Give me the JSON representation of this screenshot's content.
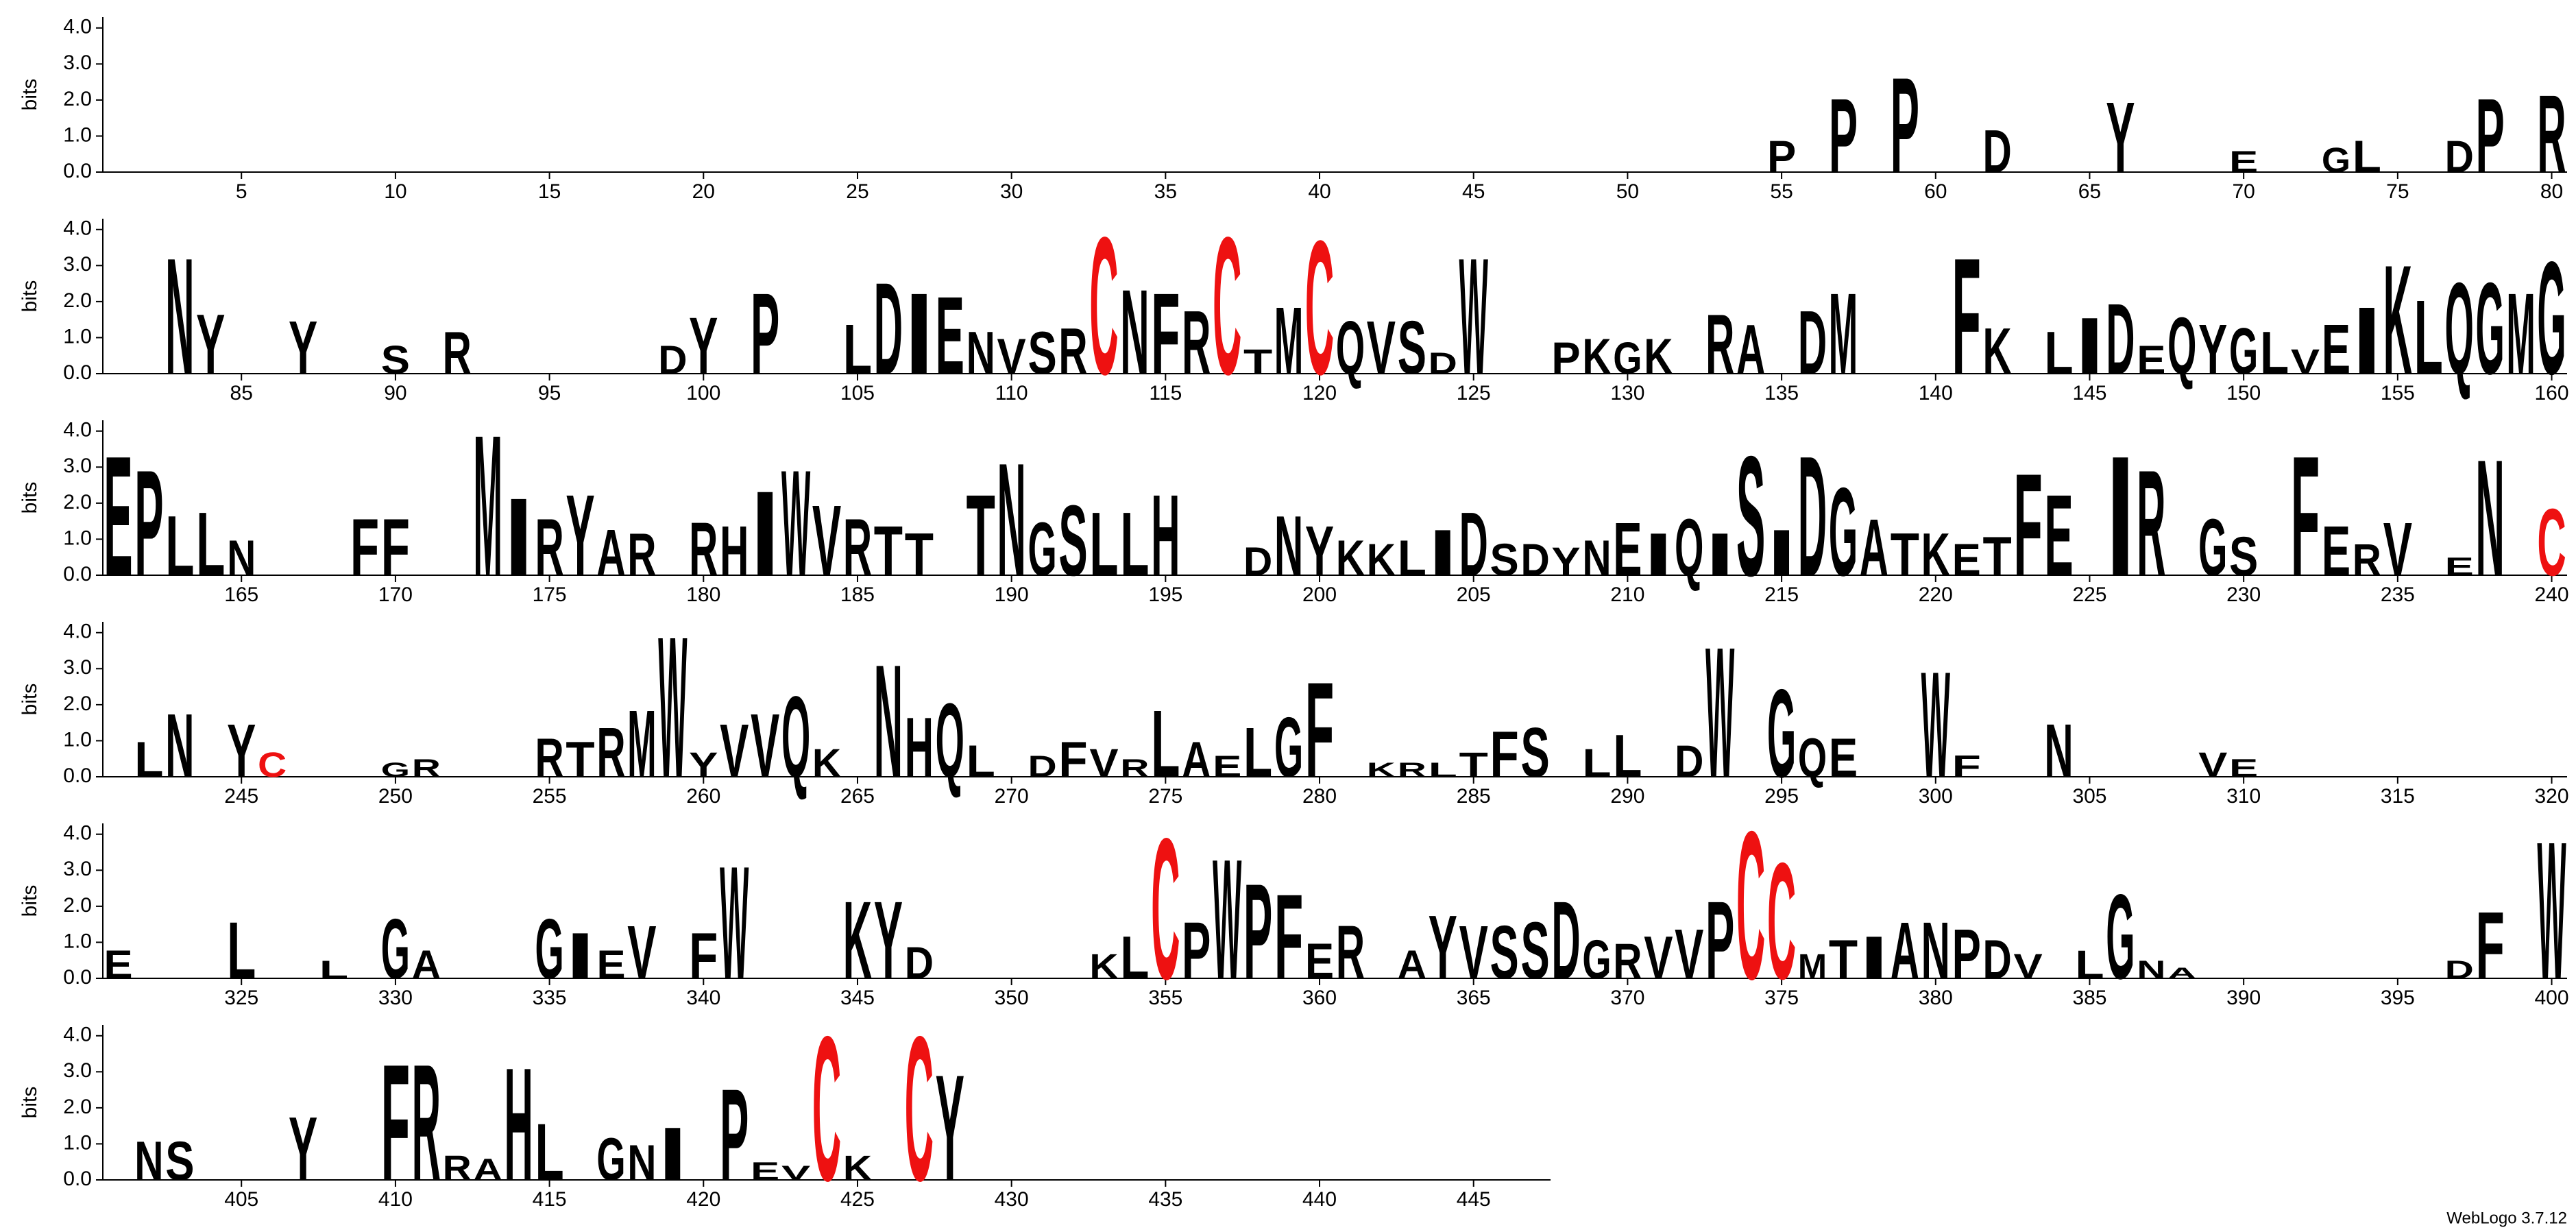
{
  "footer": "WebLogo 3.7.12",
  "chart_data": [
    {
      "type": "logo",
      "ylabel": "bits",
      "xlim": [
        0.5,
        80.5
      ],
      "ylim": [
        0,
        4.3
      ],
      "xticks": [
        5,
        10,
        15,
        20,
        25,
        30,
        35,
        40,
        45,
        50,
        55,
        60,
        65,
        70,
        75,
        80
      ],
      "yticks": [
        {
          "value": 0,
          "label": "0.0"
        },
        {
          "value": 1,
          "label": "1.0"
        },
        {
          "value": 2,
          "label": "2.0"
        },
        {
          "value": 3,
          "label": "3.0"
        },
        {
          "value": 4,
          "label": "4.0"
        }
      ],
      "color": "#000000",
      "highlight_letter": "C",
      "highlight_color": "#ee1111",
      "positions": [
        55,
        57,
        59,
        62,
        66,
        70,
        73,
        74,
        77,
        78,
        80
      ],
      "letters": [
        "P",
        "P",
        "P",
        "D",
        "Y",
        "E",
        "G",
        "L",
        "D",
        "P",
        "R"
      ],
      "values": [
        0.9,
        2.1,
        2.7,
        1.2,
        2.0,
        0.6,
        0.7,
        0.9,
        0.9,
        2.1,
        2.2
      ]
    },
    {
      "type": "logo",
      "ylabel": "bits",
      "xlim": [
        80.5,
        160.5
      ],
      "ylim": [
        0,
        4.3
      ],
      "xticks": [
        85,
        90,
        95,
        100,
        105,
        110,
        115,
        120,
        125,
        130,
        135,
        140,
        145,
        150,
        155,
        160
      ],
      "yticks": [
        {
          "value": 0,
          "label": "0.0"
        },
        {
          "value": 1,
          "label": "1.0"
        },
        {
          "value": 2,
          "label": "2.0"
        },
        {
          "value": 3,
          "label": "3.0"
        },
        {
          "value": 4,
          "label": "4.0"
        }
      ],
      "color": "#000000",
      "highlight_letter": "C",
      "highlight_color": "#ee1111",
      "positions": [
        83,
        84,
        87,
        90,
        92,
        99,
        100,
        102,
        105,
        106,
        107,
        108,
        109,
        110,
        111,
        112,
        113,
        114,
        115,
        116,
        117,
        118,
        119,
        120,
        121,
        122,
        123,
        124,
        125,
        128,
        129,
        130,
        131,
        133,
        134,
        136,
        137,
        141,
        142,
        144,
        145,
        146,
        147,
        148,
        149,
        150,
        151,
        152,
        153,
        154,
        155,
        156,
        157,
        158,
        159,
        160
      ],
      "letters": [
        "N",
        "Y",
        "Y",
        "S",
        "R",
        "D",
        "Y",
        "P",
        "L",
        "D",
        "I",
        "E",
        "N",
        "V",
        "S",
        "R",
        "C",
        "N",
        "F",
        "R",
        "C",
        "T",
        "M",
        "C",
        "Q",
        "V",
        "S",
        "D",
        "W",
        "P",
        "K",
        "G",
        "K",
        "R",
        "A",
        "D",
        "M",
        "F",
        "K",
        "L",
        "I",
        "D",
        "E",
        "Q",
        "Y",
        "G",
        "L",
        "V",
        "E",
        "I",
        "K",
        "L",
        "Q",
        "G",
        "M",
        "G"
      ],
      "values": [
        3.3,
        1.7,
        1.5,
        0.8,
        1.2,
        0.8,
        1.6,
        2.3,
        1.4,
        2.6,
        2.3,
        2.2,
        1.2,
        1.0,
        1.2,
        1.3,
        3.9,
        2.4,
        2.3,
        1.8,
        3.9,
        0.7,
        1.9,
        3.8,
        1.5,
        1.5,
        1.5,
        0.6,
        3.3,
        0.9,
        1.0,
        0.9,
        1.0,
        1.7,
        1.4,
        1.8,
        2.3,
        3.3,
        1.3,
        1.2,
        1.6,
        2.0,
        0.8,
        1.6,
        1.4,
        1.3,
        1.2,
        0.7,
        1.4,
        1.9,
        3.1,
        2.1,
        2.6,
        2.6,
        2.3,
        3.2
      ]
    },
    {
      "type": "logo",
      "ylabel": "bits",
      "xlim": [
        160.5,
        240.5
      ],
      "ylim": [
        0,
        4.3
      ],
      "xticks": [
        165,
        170,
        175,
        180,
        185,
        190,
        195,
        200,
        205,
        210,
        215,
        220,
        225,
        230,
        235,
        240
      ],
      "yticks": [
        {
          "value": 0,
          "label": "0.0"
        },
        {
          "value": 1,
          "label": "1.0"
        },
        {
          "value": 2,
          "label": "2.0"
        },
        {
          "value": 3,
          "label": "3.0"
        },
        {
          "value": 4,
          "label": "4.0"
        }
      ],
      "color": "#000000",
      "highlight_letter": "C",
      "highlight_color": "#ee1111",
      "positions": [
        161,
        162,
        163,
        164,
        165,
        169,
        170,
        173,
        174,
        175,
        176,
        177,
        178,
        180,
        181,
        182,
        183,
        184,
        185,
        186,
        187,
        189,
        190,
        191,
        192,
        193,
        194,
        195,
        198,
        199,
        200,
        201,
        202,
        203,
        204,
        205,
        206,
        207,
        208,
        209,
        210,
        211,
        212,
        213,
        214,
        215,
        216,
        217,
        218,
        219,
        220,
        221,
        222,
        223,
        224,
        226,
        227,
        229,
        230,
        232,
        233,
        234,
        235,
        237,
        238,
        240
      ],
      "letters": [
        "E",
        "P",
        "L",
        "L",
        "N",
        "F",
        "F",
        "M",
        "I",
        "R",
        "Y",
        "A",
        "R",
        "R",
        "H",
        "I",
        "W",
        "V",
        "R",
        "T",
        "T",
        "T",
        "N",
        "G",
        "S",
        "L",
        "L",
        "H",
        "D",
        "N",
        "Y",
        "K",
        "K",
        "L",
        "I",
        "D",
        "S",
        "D",
        "Y",
        "N",
        "E",
        "I",
        "Q",
        "I",
        "S",
        "I",
        "D",
        "G",
        "A",
        "T",
        "K",
        "E",
        "T",
        "F",
        "E",
        "I",
        "R",
        "G",
        "S",
        "F",
        "E",
        "R",
        "V",
        "E",
        "N",
        "C"
      ],
      "values": [
        3.4,
        3.0,
        1.7,
        1.8,
        1.0,
        1.6,
        1.6,
        4.0,
        2.2,
        1.6,
        2.3,
        1.3,
        1.2,
        1.5,
        1.4,
        2.4,
        3.0,
        2.0,
        1.6,
        1.4,
        1.2,
        2.3,
        3.2,
        1.5,
        2.0,
        1.8,
        1.8,
        2.3,
        0.8,
        1.7,
        1.4,
        1.0,
        0.9,
        1.0,
        1.3,
        1.8,
        0.9,
        0.9,
        0.8,
        1.0,
        1.5,
        1.2,
        1.6,
        1.2,
        3.4,
        1.3,
        3.4,
        2.5,
        1.6,
        1.2,
        1.2,
        0.9,
        1.1,
        2.9,
        2.3,
        3.4,
        3.0,
        1.6,
        1.1,
        3.4,
        1.4,
        0.9,
        1.5,
        0.5,
        3.3,
        1.9
      ]
    },
    {
      "type": "logo",
      "ylabel": "bits",
      "xlim": [
        240.5,
        320.5
      ],
      "ylim": [
        0,
        4.3
      ],
      "xticks": [
        245,
        250,
        255,
        260,
        265,
        270,
        275,
        280,
        285,
        290,
        295,
        300,
        305,
        310,
        315,
        320
      ],
      "yticks": [
        {
          "value": 0,
          "label": "0.0"
        },
        {
          "value": 1,
          "label": "1.0"
        },
        {
          "value": 2,
          "label": "2.0"
        },
        {
          "value": 3,
          "label": "3.0"
        },
        {
          "value": 4,
          "label": "4.0"
        }
      ],
      "color": "#000000",
      "highlight_letter": "C",
      "highlight_color": "#ee1111",
      "positions": [
        242,
        243,
        245,
        246,
        250,
        251,
        255,
        256,
        257,
        258,
        259,
        260,
        261,
        262,
        263,
        264,
        266,
        267,
        268,
        269,
        271,
        272,
        273,
        274,
        275,
        276,
        277,
        278,
        279,
        280,
        282,
        283,
        284,
        285,
        286,
        287,
        289,
        290,
        292,
        293,
        295,
        296,
        297,
        300,
        301,
        304,
        309,
        310
      ],
      "letters": [
        "L",
        "N",
        "Y",
        "C",
        "G",
        "R",
        "R",
        "T",
        "R",
        "M",
        "W",
        "Y",
        "V",
        "V",
        "Q",
        "K",
        "N",
        "H",
        "Q",
        "L",
        "D",
        "F",
        "V",
        "R",
        "L",
        "A",
        "E",
        "L",
        "G",
        "F",
        "K",
        "R",
        "L",
        "T",
        "F",
        "S",
        "L",
        "L",
        "D",
        "W",
        "G",
        "Q",
        "E",
        "W",
        "F",
        "N",
        "V",
        "E"
      ],
      "values": [
        1.0,
        1.8,
        1.5,
        0.7,
        0.4,
        0.5,
        1.1,
        1.0,
        1.4,
        1.9,
        4.0,
        0.7,
        1.5,
        1.8,
        2.3,
        0.8,
        3.2,
        1.7,
        2.1,
        0.9,
        0.6,
        1.0,
        0.8,
        0.5,
        1.9,
        1.0,
        0.6,
        1.4,
        1.7,
        2.7,
        0.4,
        0.4,
        0.4,
        0.7,
        1.3,
        1.4,
        0.8,
        1.2,
        0.9,
        3.7,
        2.5,
        1.1,
        1.1,
        3.0,
        0.6,
        1.5,
        0.7,
        0.5
      ]
    },
    {
      "type": "logo",
      "ylabel": "bits",
      "xlim": [
        320.5,
        400.5
      ],
      "ylim": [
        0,
        4.3
      ],
      "xticks": [
        325,
        330,
        335,
        340,
        345,
        350,
        355,
        360,
        365,
        370,
        375,
        380,
        385,
        390,
        395,
        400
      ],
      "yticks": [
        {
          "value": 0,
          "label": "0.0"
        },
        {
          "value": 1,
          "label": "1.0"
        },
        {
          "value": 2,
          "label": "2.0"
        },
        {
          "value": 3,
          "label": "3.0"
        },
        {
          "value": 4,
          "label": "4.0"
        }
      ],
      "color": "#000000",
      "highlight_letter": "C",
      "highlight_color": "#ee1111",
      "positions": [
        321,
        325,
        328,
        330,
        331,
        335,
        336,
        337,
        338,
        340,
        341,
        345,
        346,
        347,
        353,
        354,
        355,
        356,
        357,
        358,
        359,
        360,
        361,
        363,
        364,
        365,
        366,
        367,
        368,
        369,
        370,
        371,
        372,
        373,
        374,
        375,
        376,
        377,
        378,
        379,
        380,
        381,
        382,
        383,
        385,
        386,
        387,
        388,
        397,
        398,
        400
      ],
      "letters": [
        "E",
        "L",
        "L",
        "G",
        "A",
        "G",
        "I",
        "E",
        "V",
        "F",
        "W",
        "K",
        "Y",
        "D",
        "K",
        "L",
        "C",
        "P",
        "W",
        "P",
        "F",
        "E",
        "R",
        "A",
        "Y",
        "V",
        "S",
        "S",
        "D",
        "G",
        "R",
        "V",
        "V",
        "P",
        "C",
        "C",
        "M",
        "T",
        "I",
        "A",
        "N",
        "P",
        "D",
        "V",
        "L",
        "G",
        "N",
        "A",
        "D",
        "F",
        "W"
      ],
      "values": [
        0.8,
        1.6,
        0.5,
        1.7,
        0.8,
        1.7,
        1.3,
        0.8,
        1.5,
        1.3,
        3.2,
        2.2,
        2.2,
        0.9,
        0.7,
        1.2,
        4.0,
        1.6,
        3.4,
        2.7,
        2.4,
        1.0,
        1.5,
        0.8,
        1.8,
        1.5,
        1.5,
        1.6,
        2.2,
        1.1,
        1.0,
        1.2,
        1.4,
        2.2,
        4.2,
        3.3,
        0.7,
        1.1,
        1.2,
        1.6,
        1.6,
        1.4,
        1.1,
        0.7,
        0.8,
        2.4,
        0.5,
        0.3,
        0.5,
        1.9,
        3.9
      ]
    },
    {
      "type": "logo",
      "ylabel": "bits",
      "xlim": [
        400.5,
        447.5
      ],
      "ylim": [
        0,
        4.3
      ],
      "xticks": [
        405,
        410,
        415,
        420,
        425,
        430,
        435,
        440,
        445
      ],
      "yticks": [
        {
          "value": 0,
          "label": "0.0"
        },
        {
          "value": 1,
          "label": "1.0"
        },
        {
          "value": 2,
          "label": "2.0"
        },
        {
          "value": 3,
          "label": "3.0"
        },
        {
          "value": 4,
          "label": "4.0"
        }
      ],
      "color": "#000000",
      "highlight_letter": "C",
      "highlight_color": "#ee1111",
      "positions": [
        402,
        403,
        407,
        410,
        411,
        412,
        413,
        414,
        415,
        417,
        418,
        419,
        421,
        422,
        423,
        424,
        425,
        427,
        428
      ],
      "letters": [
        "N",
        "S",
        "Y",
        "F",
        "R",
        "R",
        "A",
        "H",
        "L",
        "G",
        "N",
        "I",
        "P",
        "E",
        "V",
        "C",
        "K",
        "C",
        "Y"
      ],
      "values": [
        1.1,
        1.1,
        1.8,
        3.3,
        3.3,
        0.7,
        0.6,
        3.2,
        1.6,
        1.2,
        1.0,
        1.5,
        2.6,
        0.5,
        0.4,
        4.1,
        0.7,
        4.1,
        3.0
      ]
    }
  ]
}
